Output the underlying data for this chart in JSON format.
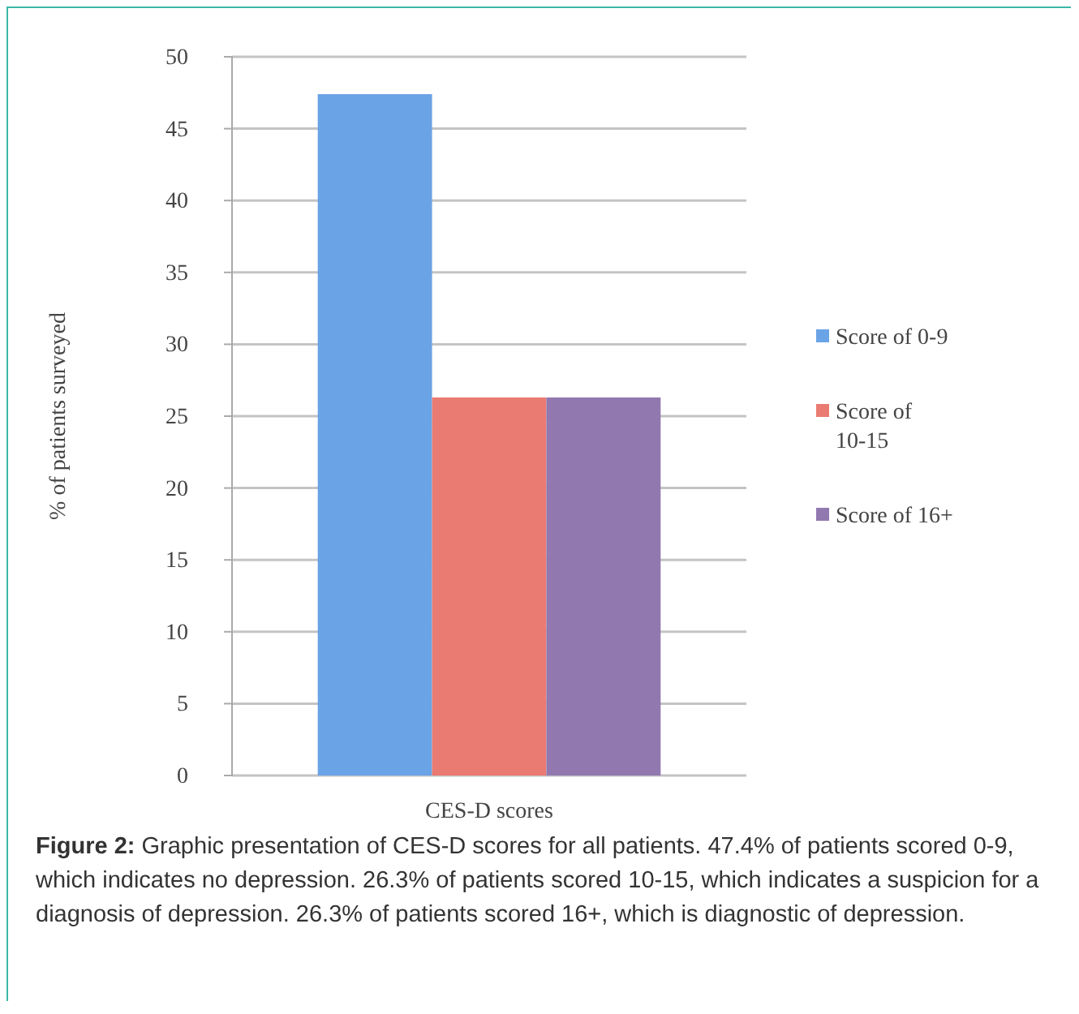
{
  "chart_data": {
    "type": "bar",
    "categories": [
      "CES-D scores"
    ],
    "ylabel": "% of patients surveyed",
    "ylim": [
      0,
      50
    ],
    "yticks": [
      0,
      5,
      10,
      15,
      20,
      25,
      30,
      35,
      40,
      45,
      50
    ],
    "grid": "y",
    "legend": "right",
    "series": [
      {
        "name": "Score of 0-9",
        "color": "#6aa3e6",
        "values": [
          47.4
        ]
      },
      {
        "name": "Score of 10-15",
        "color": "#ea7b72",
        "values": [
          26.3
        ]
      },
      {
        "name": "Score of 16+",
        "color": "#9179b0",
        "values": [
          26.3
        ]
      }
    ],
    "annotations": [
      "Figure 2: Graphic presentation of CES-D scores for all patients. 47.4% of patients scored 0-9, which indicates no depression. 26.3% of patients scored 10-15, which indicates a suspicion for a diagnosis of depression. 26.3% of patients scored 16+, which is diagnostic of depression."
    ]
  }
}
